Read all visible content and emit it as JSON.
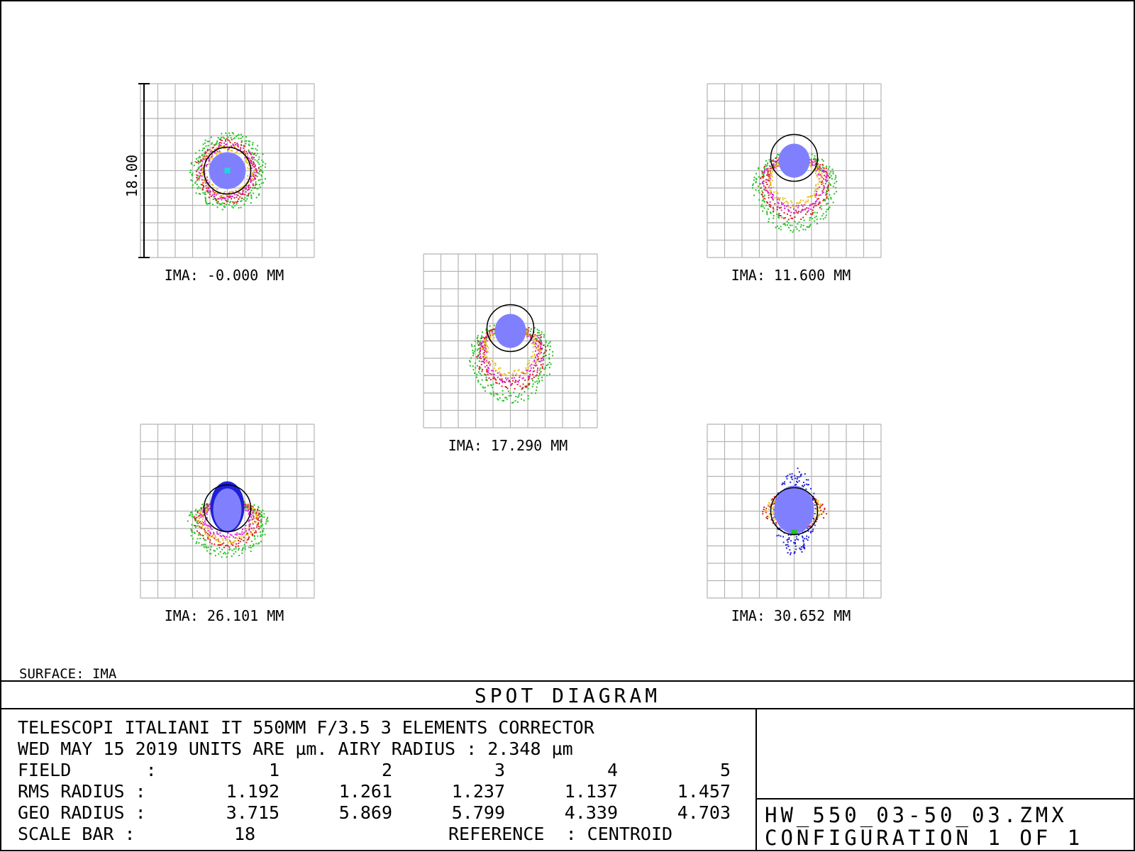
{
  "diagram": {
    "title": "SPOT DIAGRAM",
    "surface_label": "SURFACE: IMA",
    "scale_bar_label": "18.00",
    "panels": [
      {
        "label": "IMA: -0.000 MM",
        "shape": "round"
      },
      {
        "label": "IMA: 11.600 MM",
        "shape": "coma-down"
      },
      {
        "label": "IMA: 17.290 MM",
        "shape": "coma-down"
      },
      {
        "label": "IMA: 26.101 MM",
        "shape": "arrow"
      },
      {
        "label": "IMA: 30.652 MM",
        "shape": "elongated"
      }
    ],
    "wavelength_colors": [
      "#1f1fd8",
      "#22c322",
      "#d81f1f",
      "#e6c21a",
      "#d622d6",
      "#22d6d6",
      "#8080ff"
    ]
  },
  "info": {
    "line1": "TELESCOPI ITALIANI IT 550MM F/3.5  3 ELEMENTS CORRECTOR",
    "line2": "WED MAY 15 2019  UNITS ARE µm.  AIRY RADIUS : 2.348 µm",
    "field_label": "FIELD       :",
    "fields": [
      "1",
      "2",
      "3",
      "4",
      "5"
    ],
    "rms_label": "RMS RADIUS :",
    "rms": [
      "1.192",
      "1.261",
      "1.237",
      "1.137",
      "1.457"
    ],
    "geo_label": "GEO RADIUS :",
    "geo": [
      "3.715",
      "5.869",
      "5.799",
      "4.339",
      "4.703"
    ],
    "scale_label": "SCALE BAR  :",
    "scale_value": "18",
    "reference": "REFERENCE  : CENTROID"
  },
  "file": {
    "name": "HW_550_03-50_03.ZMX",
    "config": "CONFIGURATION 1 OF 1"
  }
}
